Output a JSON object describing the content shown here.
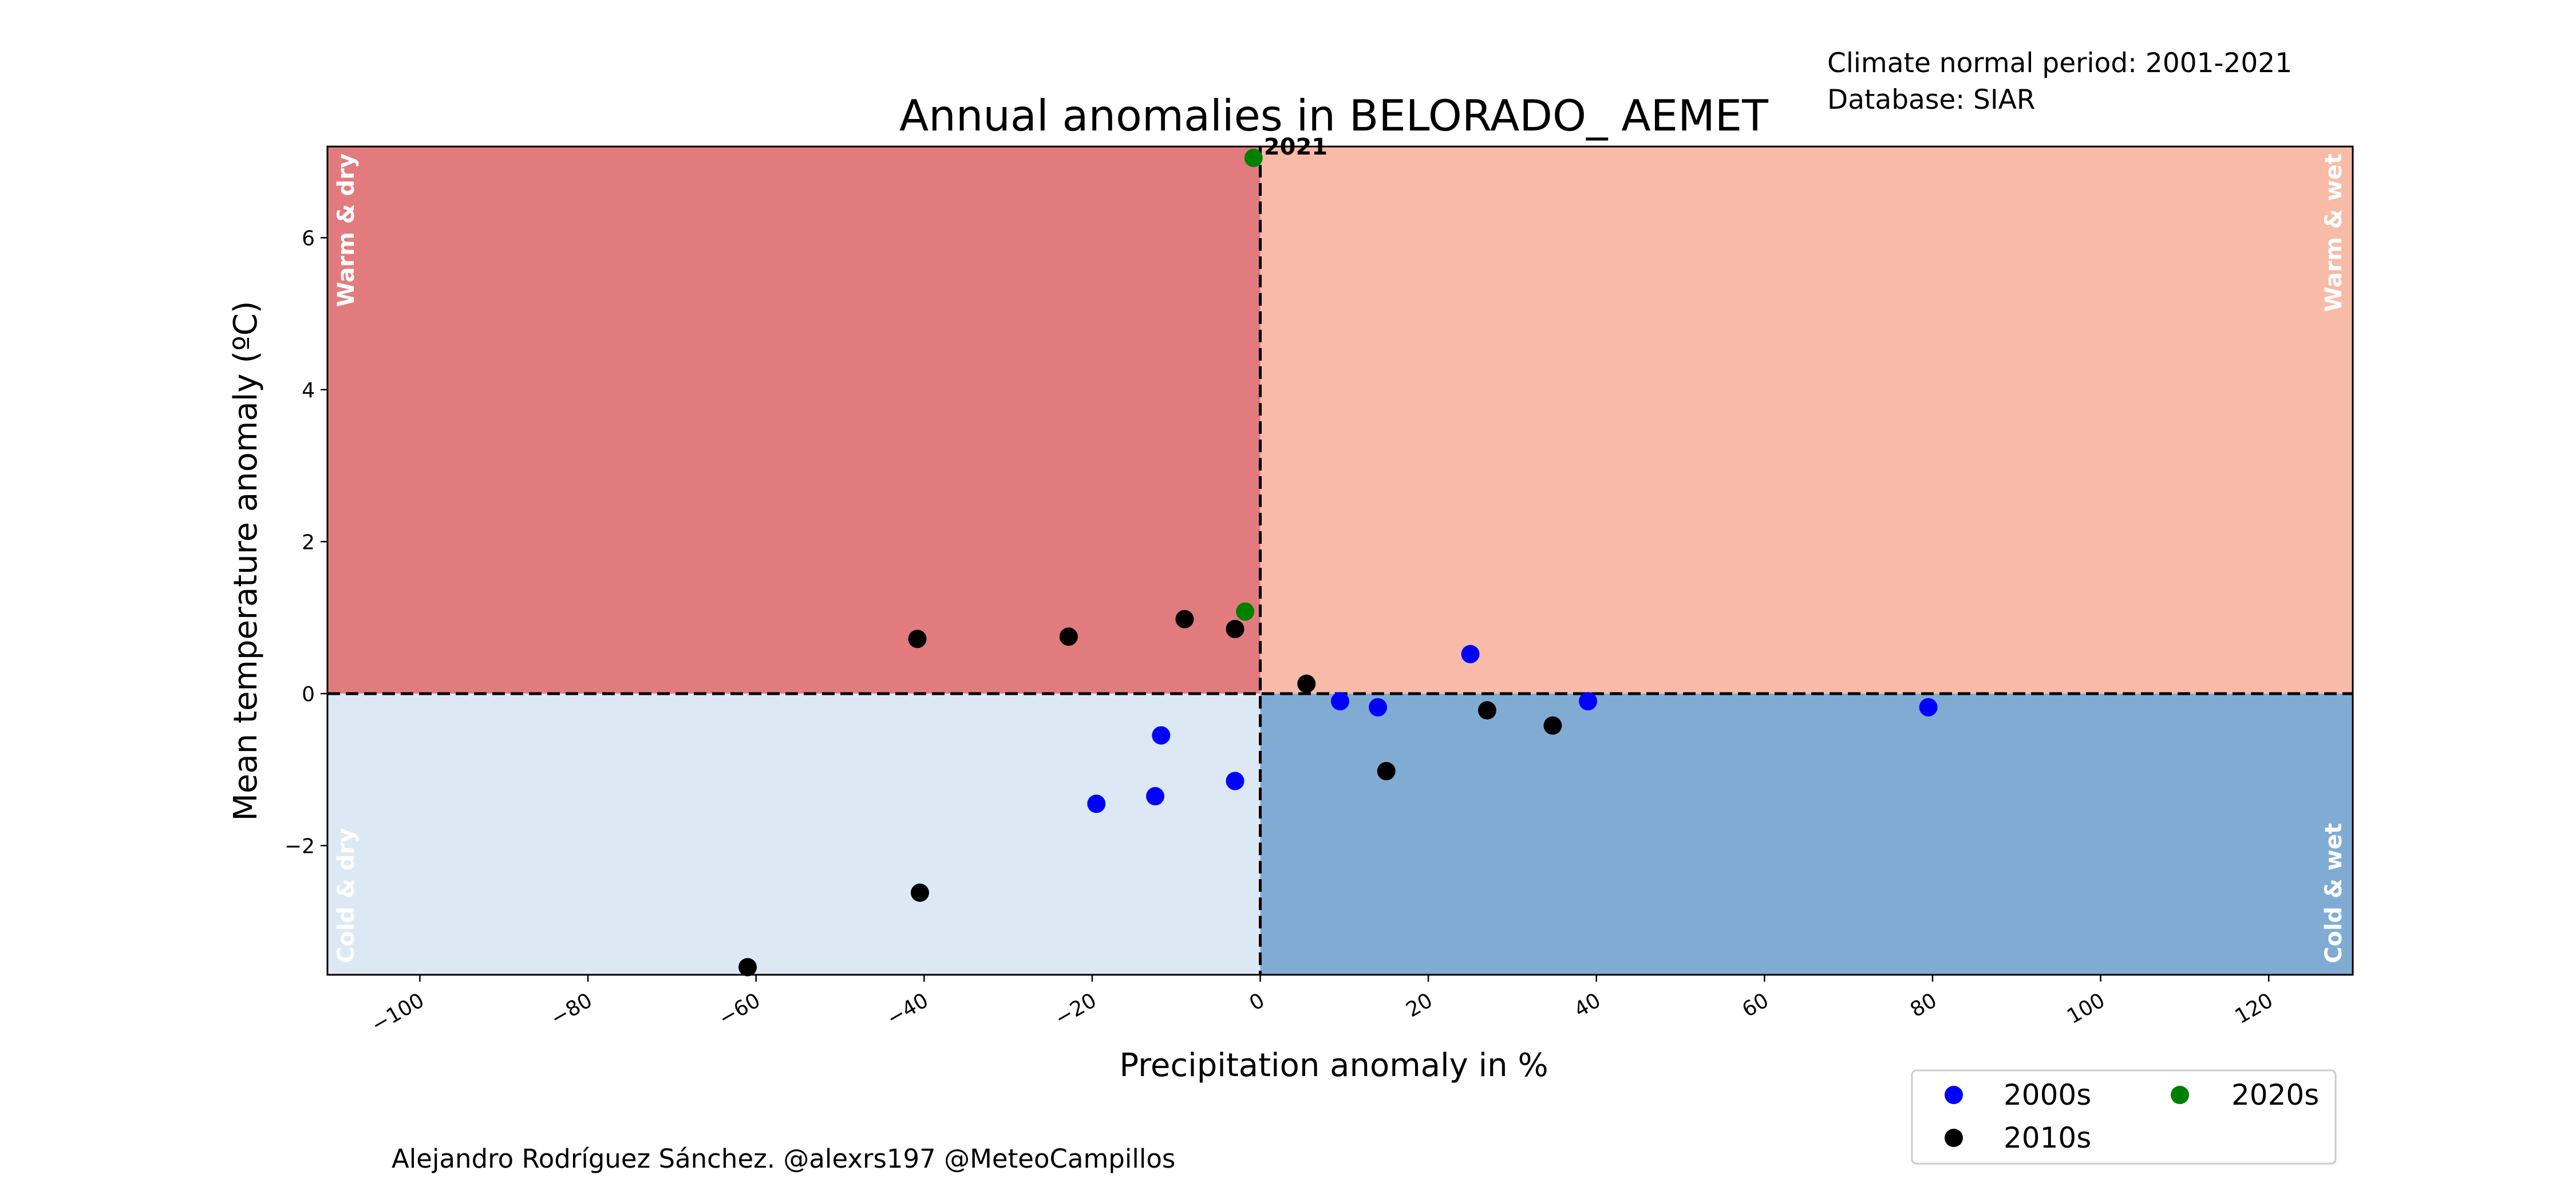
{
  "info": {
    "normal_period": "Climate normal period: 2001-2021",
    "database": "Database: SIAR"
  },
  "credit": "Alejandro Rodríguez Sánchez. @alexrs197 @MeteoCampillos",
  "chart_data": {
    "type": "scatter",
    "title": "Annual anomalies in BELORADO_ AEMET",
    "xlabel": "Precipitation anomaly in %",
    "ylabel": "Mean temperature anomaly (ºC)",
    "xlim": [
      -111,
      130
    ],
    "ylim": [
      -3.7,
      7.2
    ],
    "x_ticks": [
      -100,
      -80,
      -60,
      -40,
      -20,
      0,
      20,
      40,
      60,
      80,
      100,
      120
    ],
    "x_tick_labels": [
      "−100",
      "−80",
      "−60",
      "−40",
      "−20",
      "0",
      "20",
      "40",
      "60",
      "80",
      "100",
      "120"
    ],
    "y_ticks": [
      -2,
      0,
      2,
      4,
      6
    ],
    "y_tick_labels": [
      "−2",
      "0",
      "2",
      "4",
      "6"
    ],
    "quadrants": [
      {
        "label": "Warm & dry",
        "color": "#e27b7d"
      },
      {
        "label": "Warm & wet",
        "color": "#f7bba8"
      },
      {
        "label": "Cold & dry",
        "color": "#dce9f5"
      },
      {
        "label": "Cold & wet",
        "color": "#80acd4"
      }
    ],
    "series": [
      {
        "name": "2000s",
        "color": "#0000ff",
        "points": [
          [
            -19.5,
            -1.45
          ],
          [
            -12.5,
            -1.35
          ],
          [
            -11.8,
            -0.55
          ],
          [
            -3,
            -1.15
          ],
          [
            9.5,
            -0.1
          ],
          [
            14,
            -0.18
          ],
          [
            25,
            0.52
          ],
          [
            39,
            -0.1
          ],
          [
            79.5,
            -0.18
          ]
        ]
      },
      {
        "name": "2010s",
        "color": "#000000",
        "points": [
          [
            -61,
            -3.6
          ],
          [
            -40.5,
            -2.62
          ],
          [
            -40.8,
            0.72
          ],
          [
            -22.8,
            0.75
          ],
          [
            -9,
            0.98
          ],
          [
            -3,
            0.85
          ],
          [
            5.5,
            0.13
          ],
          [
            15,
            -1.02
          ],
          [
            27,
            -0.22
          ],
          [
            34.8,
            -0.42
          ]
        ]
      },
      {
        "name": "2020s",
        "color": "#008000",
        "points": [
          [
            -1.8,
            1.08
          ],
          [
            -0.8,
            7.05
          ]
        ]
      }
    ],
    "annotations": [
      {
        "text": "2021",
        "x": -0.8,
        "y": 7.05
      }
    ],
    "legend_position": "lower-right"
  }
}
